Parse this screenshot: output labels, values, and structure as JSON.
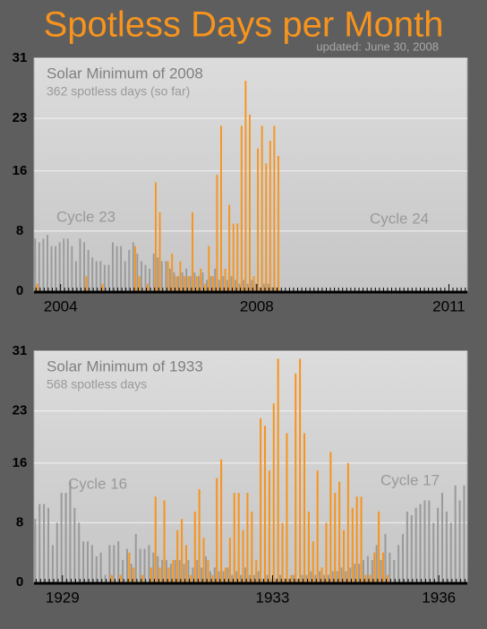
{
  "header": {
    "title": "Spotless Days per Month",
    "updated": "updated: June 30, 2008"
  },
  "chart_data": [
    {
      "type": "bar",
      "title": "Solar Minimum of 2008",
      "subtitle": "362 spotless days (so far)",
      "annotations": [
        "Cycle 23",
        "Cycle 24"
      ],
      "categories": [
        null,
        null,
        null,
        null,
        null,
        null,
        "2004",
        null,
        null,
        null,
        null,
        null,
        null,
        null,
        null,
        null,
        null,
        null,
        null,
        null,
        null,
        null,
        null,
        null,
        null,
        null,
        null,
        null,
        null,
        null,
        null,
        null,
        null,
        null,
        null,
        null,
        null,
        null,
        null,
        null,
        null,
        null,
        null,
        null,
        null,
        null,
        null,
        null,
        null,
        null,
        null,
        null,
        null,
        null,
        "2008",
        null,
        null,
        null,
        null,
        null,
        null,
        null,
        null,
        null,
        null,
        null,
        null,
        null,
        null,
        null,
        null,
        null,
        null,
        null,
        null,
        null,
        null,
        null,
        null,
        null,
        null,
        null,
        null,
        null,
        null,
        null,
        null,
        null,
        null,
        null,
        null,
        null,
        null,
        null,
        null,
        null,
        null,
        null,
        null,
        null,
        null,
        "2011",
        null,
        null,
        null,
        null
      ],
      "series": [
        {
          "color": "#9a9a9a",
          "values": [
            7,
            6.5,
            7,
            7.5,
            6,
            6,
            6.5,
            7,
            7,
            6,
            4,
            7,
            6.5,
            5.5,
            4.5,
            4,
            4,
            3.5,
            3.5,
            6.5,
            6,
            6,
            4,
            5.5,
            6.5,
            5,
            4,
            3.5,
            3,
            5,
            4.5,
            4,
            4,
            3,
            2.5,
            2,
            2.5,
            3,
            2,
            2.5,
            2,
            2.5,
            1.5,
            2,
            3,
            1.5,
            2,
            1.5,
            2,
            1.5,
            1,
            1.5,
            1,
            1.5,
            1,
            0.5,
            1,
            1,
            0.5,
            0.5,
            null,
            null,
            null,
            null,
            null,
            null,
            null,
            null,
            null,
            null,
            null,
            null,
            null,
            null,
            null,
            null,
            null,
            null,
            null,
            null,
            null,
            null,
            null,
            null,
            null,
            null,
            null,
            null,
            null,
            null,
            null,
            null,
            null,
            null,
            null,
            null,
            null,
            null,
            null,
            null,
            null,
            null,
            null,
            null,
            null,
            null
          ]
        },
        {
          "color": "#f7941d",
          "values": [
            1,
            0,
            0,
            0,
            0,
            0,
            0,
            0,
            0,
            0,
            0,
            0,
            2,
            0,
            0,
            0,
            1,
            0,
            0,
            0,
            0,
            0,
            0,
            0,
            6,
            2,
            0,
            1,
            0,
            14.5,
            10.5,
            0,
            4,
            5,
            2,
            4,
            2,
            2,
            10.5,
            2,
            3,
            1,
            6,
            2,
            15.5,
            22,
            3,
            11.5,
            9,
            9,
            22,
            28,
            23.5,
            2,
            19,
            22,
            17,
            20,
            22,
            18,
            null,
            null,
            null,
            null,
            null,
            null,
            null,
            null,
            null,
            null,
            null,
            null,
            null,
            null,
            null,
            null,
            null,
            null,
            null,
            null,
            null,
            null,
            null,
            null,
            null,
            null,
            null,
            null,
            null,
            null,
            null,
            null,
            null,
            null,
            null,
            null,
            null,
            null,
            null,
            null,
            null,
            null,
            null,
            null,
            null,
            null
          ]
        }
      ],
      "ylim": [
        0,
        31
      ],
      "yticks": [
        0,
        8,
        16,
        23,
        31
      ],
      "grid": true
    },
    {
      "type": "bar",
      "title": "Solar Minimum of 1933",
      "subtitle": "568 spotless days",
      "annotations": [
        "Cycle 16",
        "Cycle 17"
      ],
      "categories": [
        null,
        null,
        null,
        null,
        null,
        null,
        "1929",
        null,
        null,
        null,
        null,
        null,
        null,
        null,
        null,
        null,
        null,
        null,
        null,
        null,
        null,
        null,
        null,
        null,
        null,
        null,
        null,
        null,
        null,
        null,
        null,
        null,
        null,
        null,
        null,
        null,
        null,
        null,
        null,
        null,
        null,
        null,
        null,
        null,
        null,
        null,
        null,
        null,
        null,
        null,
        null,
        null,
        null,
        null,
        "1933",
        null,
        null,
        null,
        null,
        null,
        null,
        null,
        null,
        null,
        null,
        null,
        null,
        null,
        null,
        null,
        null,
        null,
        null,
        null,
        null,
        null,
        null,
        null,
        null,
        null,
        null,
        null,
        null,
        null,
        null,
        null,
        null,
        null,
        null,
        null,
        null,
        null,
        "1936",
        null,
        null,
        null,
        null,
        null,
        null
      ],
      "series": [
        {
          "color": "#9a9a9a",
          "values": [
            8.5,
            10.5,
            10.5,
            10,
            5,
            8,
            12,
            12,
            13.5,
            10,
            8,
            5.5,
            5.5,
            5,
            3.5,
            4,
            1,
            5,
            5,
            5.5,
            3,
            4.5,
            2.5,
            6.5,
            4.5,
            4.5,
            5,
            4,
            3.5,
            3,
            3,
            2.5,
            3,
            3,
            2.5,
            3,
            2,
            3,
            2,
            3.5,
            1.5,
            2,
            1.5,
            1.5,
            2,
            1,
            1.5,
            1,
            2,
            1,
            1,
            1.5,
            0.5,
            1,
            0.5,
            0.5,
            1,
            0.5,
            0.5,
            1,
            0.5,
            1,
            1,
            1.5,
            1,
            1.5,
            1,
            1,
            1.5,
            1.5,
            2,
            1.5,
            2,
            2.5,
            2.5,
            3,
            3.5,
            3,
            5,
            3,
            6.5,
            4,
            3,
            5,
            6.5,
            9.5,
            9,
            10,
            10.5,
            11,
            11,
            8,
            10,
            12,
            9.5,
            8,
            13,
            11,
            13
          ]
        },
        {
          "color": "#f7941d",
          "values": [
            0,
            0,
            0,
            0,
            0,
            0,
            0,
            0,
            0,
            0,
            0,
            0,
            0,
            0,
            0,
            0,
            0,
            1,
            0,
            1,
            0,
            4,
            2,
            0,
            1,
            0,
            2,
            11.5,
            2,
            11,
            2,
            3,
            7,
            8.5,
            5,
            1,
            9.5,
            12.5,
            6,
            3,
            1,
            14,
            16.5,
            2,
            6,
            12,
            12,
            7,
            12,
            9.5,
            3,
            22,
            21,
            15,
            24,
            30,
            8,
            20,
            1,
            28,
            30,
            20,
            9.5,
            5.5,
            15,
            2,
            8,
            17.5,
            12,
            13.5,
            7,
            16,
            10,
            11.5,
            11.5,
            1,
            1,
            4,
            9.5,
            4,
            1,
            0,
            0,
            0,
            0,
            0,
            0,
            0,
            0,
            0,
            0,
            0,
            0,
            0,
            0,
            0,
            0,
            0,
            0
          ]
        }
      ],
      "ylim": [
        0,
        31
      ],
      "yticks": [
        0,
        8,
        16,
        23,
        31
      ],
      "grid": true
    }
  ]
}
